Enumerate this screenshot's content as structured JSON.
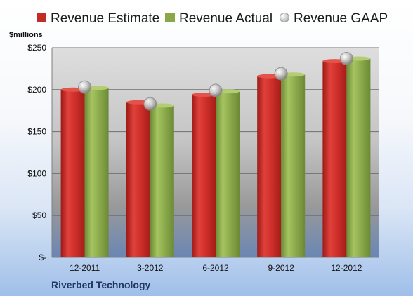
{
  "chart_data": {
    "type": "bar",
    "title": "",
    "ylabel": "$millions",
    "xlabel": "",
    "categories": [
      "12-2011",
      "3-2012",
      "6-2012",
      "9-2012",
      "12-2012"
    ],
    "series": [
      {
        "name": "Revenue Estimate",
        "type": "bar",
        "color": "#d0312d",
        "values": [
          200,
          185,
          194,
          216,
          234
        ]
      },
      {
        "name": "Revenue Actual",
        "type": "bar",
        "color": "#8aa84a",
        "values": [
          202,
          181,
          198,
          218,
          237
        ]
      },
      {
        "name": "Revenue GAAP",
        "type": "marker",
        "color": "#b8b8b8",
        "values": [
          203,
          183,
          199,
          219,
          237
        ]
      }
    ],
    "ylim": [
      0,
      250
    ],
    "yticks": [
      {
        "value": 0,
        "label": "$-"
      },
      {
        "value": 50,
        "label": "$50"
      },
      {
        "value": 100,
        "label": "$100"
      },
      {
        "value": 150,
        "label": "$150"
      },
      {
        "value": 200,
        "label": "$200"
      },
      {
        "value": 250,
        "label": "$250"
      }
    ],
    "grid": true,
    "legend_position": "top"
  },
  "labels": {
    "units": "$millions",
    "company": "Riverbed Technology"
  }
}
